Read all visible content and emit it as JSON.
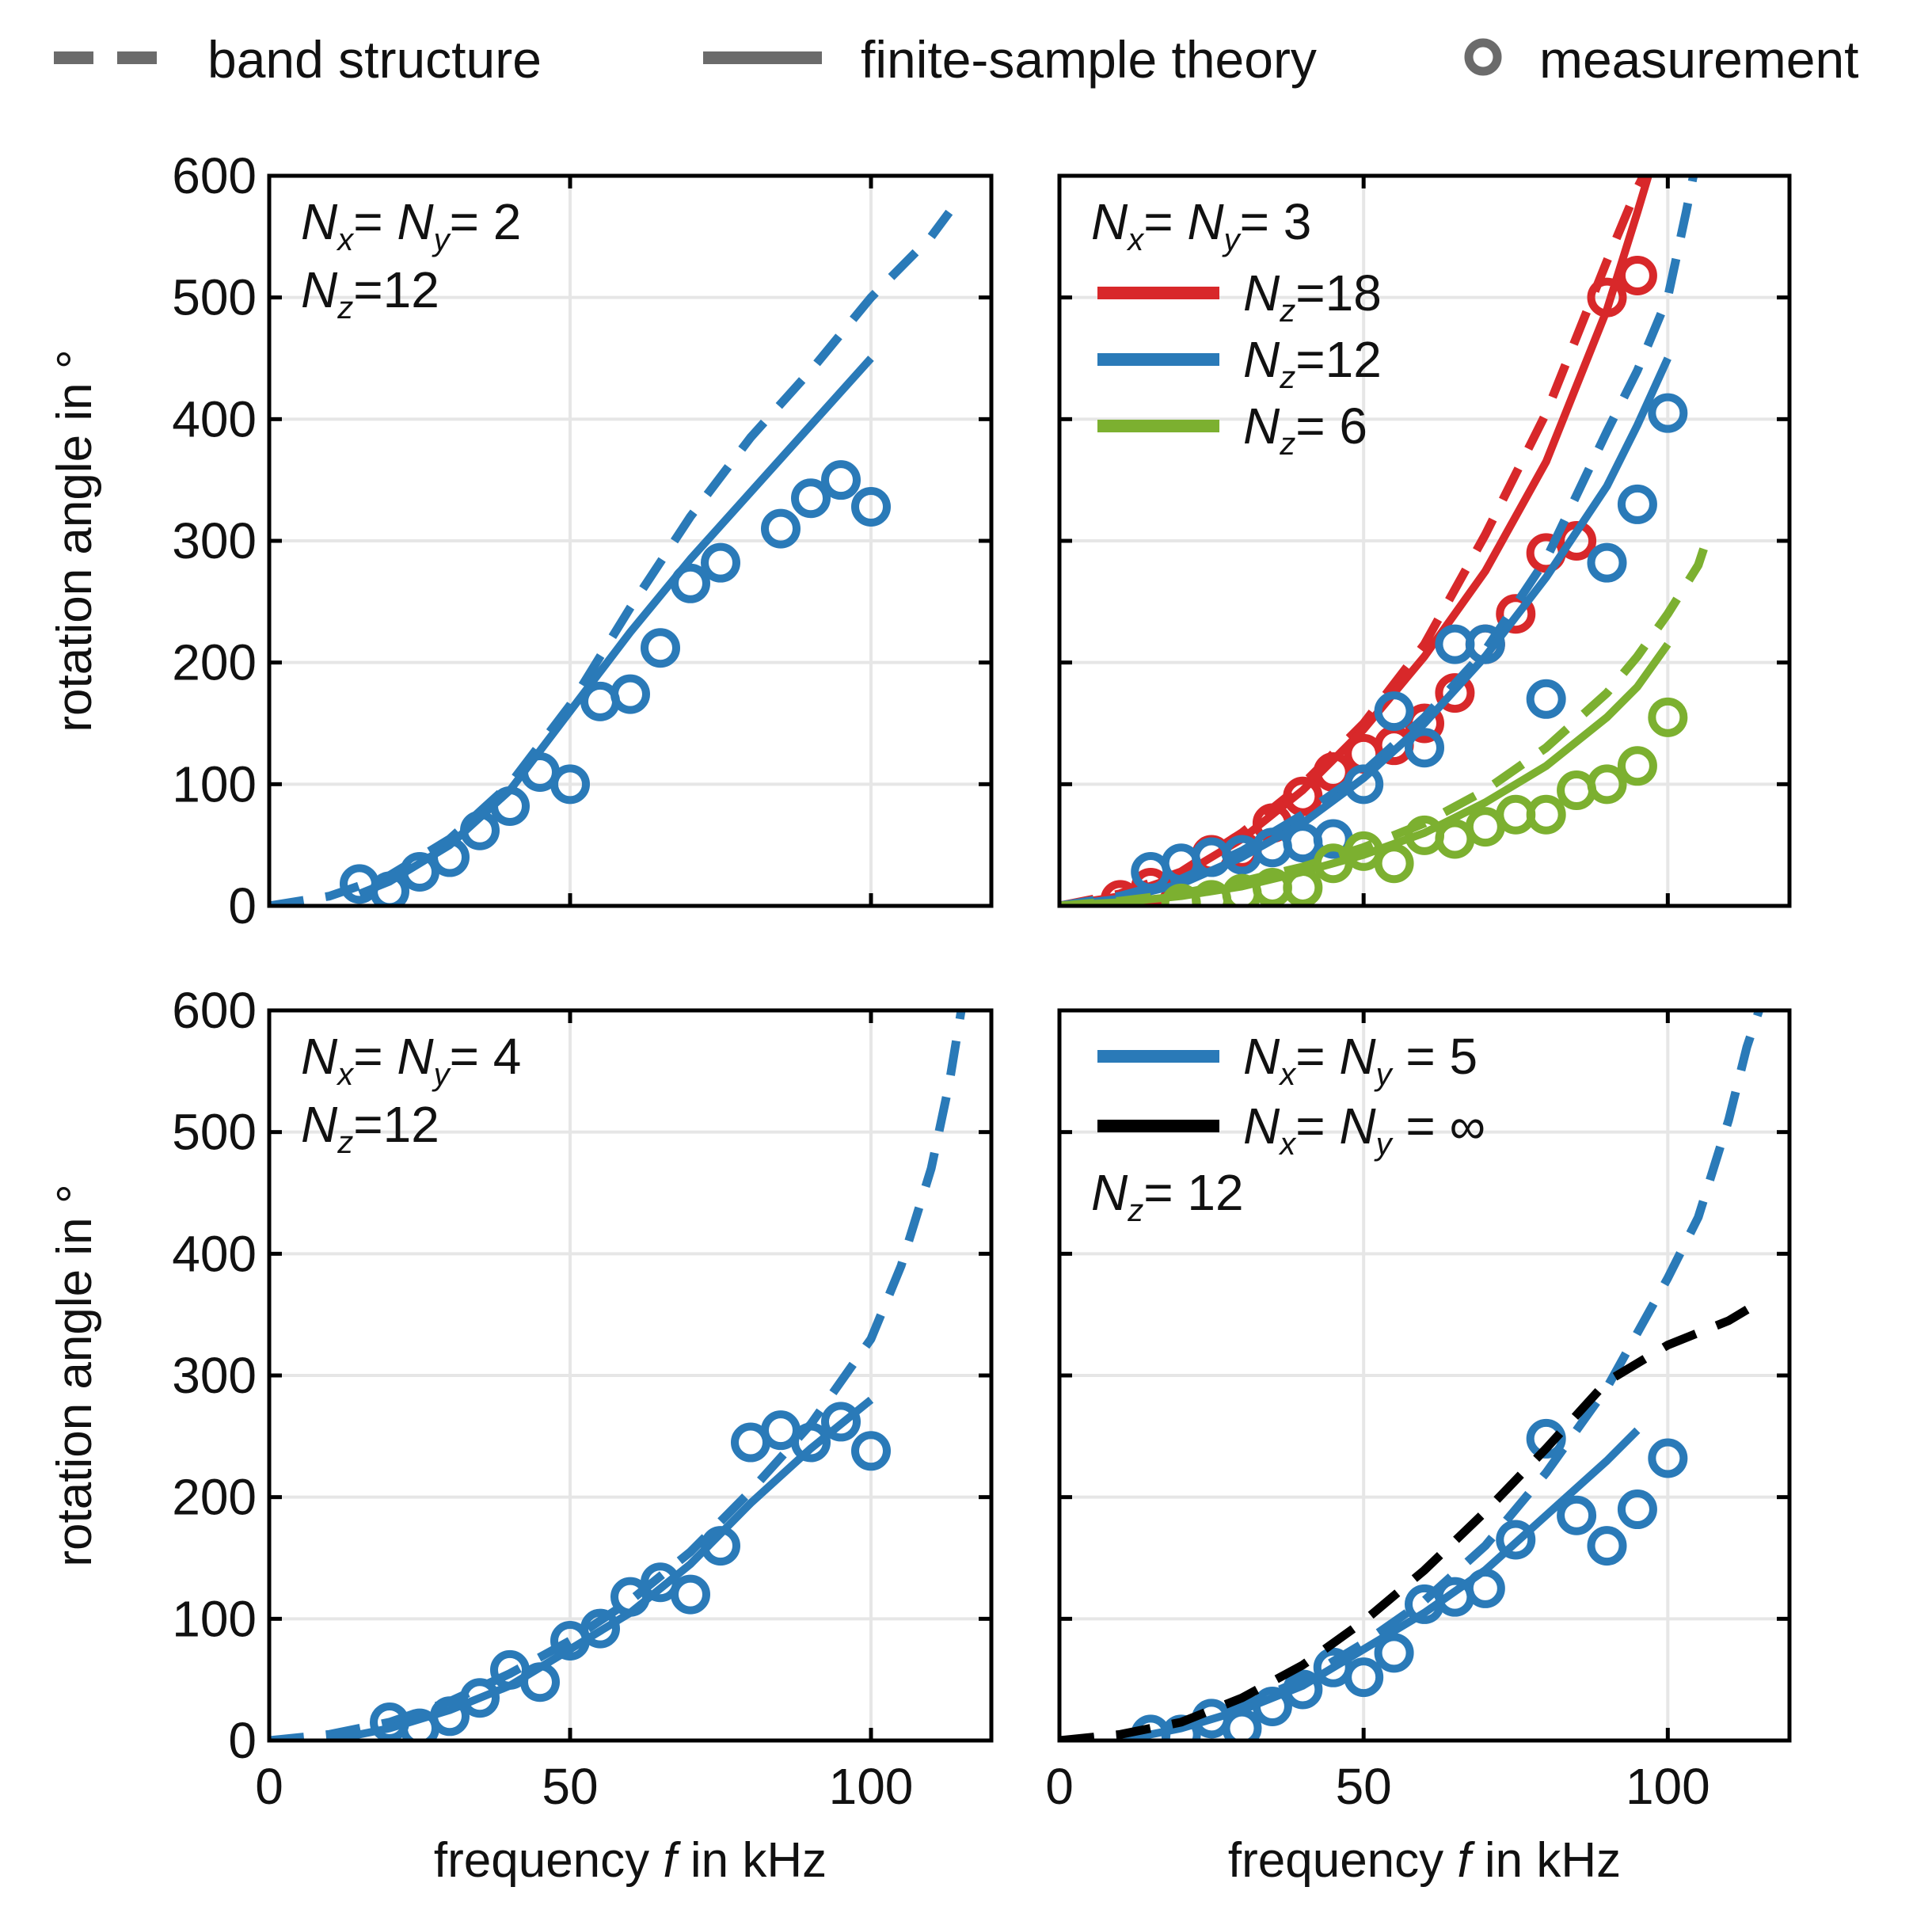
{
  "legend": {
    "dashed_label": "band structure",
    "solid_label": "finite-sample theory",
    "marker_label": "measurement",
    "color": "#6b6b6b"
  },
  "colors": {
    "blue": "#2a7ab8",
    "red": "#d8282a",
    "green": "#7cb030",
    "black": "#000000",
    "grid": "#e6e6e6"
  },
  "chart_data": [
    {
      "type": "line",
      "panel": "top-left",
      "xlim": [
        0,
        120
      ],
      "ylim": [
        0,
        600
      ],
      "xticks": [
        "0",
        "50",
        "100"
      ],
      "yticks": [
        "0",
        "100",
        "200",
        "300",
        "400",
        "500",
        "600"
      ],
      "xlabel": {
        "pre": "frequency ",
        "var": "f",
        "post": " in kHz"
      },
      "ylabel": "rotation angle in °",
      "grid": true,
      "show_x_labels": false,
      "show_y_labels": true,
      "annotations": [
        {
          "lines": [
            [
              [
                "N",
                "x",
                "="
              ],
              [
                " N",
                "y",
                "= 2"
              ]
            ],
            [
              [
                "N",
                "z",
                "=12"
              ]
            ]
          ]
        }
      ],
      "series": [
        {
          "color": "blue",
          "style": "dashed",
          "x": [
            0,
            10,
            20,
            30,
            40,
            50,
            60,
            70,
            80,
            90,
            100,
            110,
            113
          ],
          "y": [
            0,
            8,
            25,
            55,
            100,
            165,
            245,
            320,
            385,
            440,
            500,
            550,
            570
          ]
        },
        {
          "color": "blue",
          "style": "solid",
          "x": [
            15,
            20,
            30,
            40,
            50,
            60,
            70,
            80,
            90,
            100
          ],
          "y": [
            10,
            20,
            50,
            95,
            160,
            225,
            285,
            340,
            395,
            450
          ]
        },
        {
          "color": "blue",
          "style": "markers",
          "x": [
            15,
            20,
            25,
            30,
            35,
            40,
            45,
            50,
            55,
            60,
            65,
            70,
            75,
            85,
            90,
            95,
            100
          ],
          "y": [
            18,
            12,
            28,
            40,
            62,
            82,
            110,
            100,
            168,
            174,
            212,
            265,
            282,
            310,
            335,
            350,
            328
          ]
        }
      ]
    },
    {
      "type": "line",
      "panel": "top-right",
      "xlim": [
        0,
        120
      ],
      "ylim": [
        0,
        600
      ],
      "xticks": [
        "0",
        "50",
        "100"
      ],
      "yticks": [
        "0",
        "100",
        "200",
        "300",
        "400",
        "500",
        "600"
      ],
      "xlabel": {
        "pre": "frequency ",
        "var": "f",
        "post": " in kHz"
      },
      "ylabel": "rotation angle in °",
      "grid": true,
      "show_x_labels": false,
      "show_y_labels": false,
      "annotations": [
        {
          "lines": [
            [
              [
                "N",
                "x",
                "="
              ],
              [
                " N",
                "y",
                "= 3"
              ]
            ]
          ]
        }
      ],
      "legend_entries": [
        {
          "color": "red",
          "parts": [
            [
              "N",
              "z",
              "=18"
            ]
          ]
        },
        {
          "color": "blue",
          "parts": [
            [
              "N",
              "z",
              "=12"
            ]
          ]
        },
        {
          "color": "green",
          "parts": [
            [
              "N",
              "z",
              "= 6"
            ]
          ]
        }
      ],
      "series": [
        {
          "name": "Nz=18",
          "color": "red",
          "style": "dashed",
          "x": [
            0,
            10,
            20,
            30,
            40,
            50,
            60,
            70,
            80,
            90,
            95,
            98
          ],
          "y": [
            0,
            10,
            28,
            60,
            100,
            150,
            215,
            305,
            405,
            530,
            590,
            620
          ]
        },
        {
          "name": "Nz=18",
          "color": "red",
          "style": "solid",
          "x": [
            0,
            10,
            20,
            30,
            40,
            50,
            60,
            70,
            80,
            90,
            95,
            98
          ],
          "y": [
            0,
            8,
            25,
            55,
            95,
            145,
            205,
            275,
            365,
            490,
            570,
            620
          ]
        },
        {
          "name": "Nz=18",
          "color": "red",
          "style": "markers",
          "x": [
            10,
            15,
            25,
            30,
            35,
            40,
            45,
            50,
            55,
            60,
            65,
            70,
            75,
            80,
            85,
            90,
            95
          ],
          "y": [
            5,
            15,
            42,
            45,
            68,
            90,
            110,
            125,
            132,
            150,
            175,
            215,
            240,
            290,
            300,
            500,
            518
          ]
        },
        {
          "name": "Nz=12",
          "color": "blue",
          "style": "dashed",
          "x": [
            0,
            10,
            20,
            30,
            40,
            50,
            60,
            70,
            80,
            90,
            95,
            100,
            103,
            105
          ],
          "y": [
            0,
            8,
            22,
            45,
            75,
            110,
            155,
            210,
            285,
            390,
            440,
            500,
            570,
            620
          ]
        },
        {
          "name": "Nz=12",
          "color": "blue",
          "style": "solid",
          "x": [
            0,
            10,
            20,
            30,
            40,
            50,
            60,
            70,
            80,
            90,
            95,
            100
          ],
          "y": [
            0,
            6,
            18,
            40,
            68,
            105,
            150,
            205,
            270,
            345,
            395,
            450
          ]
        },
        {
          "name": "Nz=12",
          "color": "blue",
          "style": "markers",
          "x": [
            15,
            20,
            25,
            30,
            35,
            40,
            45,
            50,
            55,
            60,
            65,
            70,
            80,
            90,
            95,
            100
          ],
          "y": [
            28,
            35,
            40,
            42,
            48,
            52,
            55,
            100,
            160,
            130,
            215,
            215,
            170,
            282,
            330,
            405
          ]
        },
        {
          "name": "Nz=6",
          "color": "green",
          "style": "dashed",
          "x": [
            0,
            10,
            20,
            30,
            40,
            50,
            60,
            70,
            80,
            90,
            95,
            100,
            105,
            107
          ],
          "y": [
            0,
            4,
            10,
            20,
            32,
            48,
            68,
            95,
            130,
            175,
            205,
            240,
            280,
            310
          ]
        },
        {
          "name": "Nz=6",
          "color": "green",
          "style": "solid",
          "x": [
            0,
            10,
            20,
            30,
            40,
            50,
            60,
            70,
            80,
            90,
            95,
            100
          ],
          "y": [
            0,
            3,
            8,
            16,
            28,
            42,
            60,
            85,
            115,
            155,
            180,
            215
          ]
        },
        {
          "name": "Nz=6",
          "color": "green",
          "style": "markers",
          "x": [
            20,
            25,
            30,
            35,
            40,
            45,
            50,
            55,
            60,
            65,
            70,
            75,
            80,
            85,
            90,
            95,
            100
          ],
          "y": [
            2,
            5,
            10,
            15,
            15,
            35,
            45,
            35,
            58,
            55,
            65,
            75,
            75,
            95,
            100,
            115,
            155
          ]
        }
      ]
    },
    {
      "type": "line",
      "panel": "bottom-left",
      "xlim": [
        0,
        120
      ],
      "ylim": [
        0,
        600
      ],
      "xticks": [
        "0",
        "50",
        "100"
      ],
      "yticks": [
        "0",
        "100",
        "200",
        "300",
        "400",
        "500",
        "600"
      ],
      "xlabel": {
        "pre": "frequency ",
        "var": "f",
        "post": " in kHz"
      },
      "ylabel": "rotation angle in °",
      "grid": true,
      "show_x_labels": true,
      "show_y_labels": true,
      "annotations": [
        {
          "lines": [
            [
              [
                "N",
                "x",
                "="
              ],
              [
                " N",
                "y",
                "= 4"
              ]
            ],
            [
              [
                "N",
                "z",
                "=12"
              ]
            ]
          ]
        }
      ],
      "series": [
        {
          "color": "blue",
          "style": "dashed",
          "x": [
            0,
            10,
            20,
            30,
            40,
            50,
            60,
            70,
            80,
            90,
            100,
            105,
            110,
            113,
            115
          ],
          "y": [
            0,
            5,
            15,
            32,
            55,
            82,
            115,
            155,
            205,
            260,
            330,
            390,
            470,
            540,
            600
          ]
        },
        {
          "color": "blue",
          "style": "solid",
          "x": [
            10,
            20,
            30,
            40,
            50,
            60,
            70,
            80,
            90,
            100
          ],
          "y": [
            0,
            10,
            25,
            45,
            75,
            105,
            145,
            195,
            240,
            280
          ]
        },
        {
          "color": "blue",
          "style": "markers",
          "x": [
            20,
            25,
            30,
            35,
            40,
            45,
            50,
            55,
            60,
            65,
            70,
            75,
            80,
            85,
            90,
            95,
            100
          ],
          "y": [
            15,
            10,
            20,
            35,
            58,
            48,
            82,
            92,
            118,
            130,
            120,
            160,
            245,
            255,
            245,
            262,
            238
          ]
        }
      ]
    },
    {
      "type": "line",
      "panel": "bottom-right",
      "xlim": [
        0,
        120
      ],
      "ylim": [
        0,
        600
      ],
      "xticks": [
        "0",
        "50",
        "100"
      ],
      "yticks": [
        "0",
        "100",
        "200",
        "300",
        "400",
        "500",
        "600"
      ],
      "xlabel": {
        "pre": "frequency ",
        "var": "f",
        "post": " in kHz"
      },
      "ylabel": "rotation angle in °",
      "grid": true,
      "show_x_labels": true,
      "show_y_labels": false,
      "annotations": [
        {
          "lines": [
            [],
            [],
            [
              [
                "N",
                "z",
                "= 12"
              ]
            ]
          ]
        }
      ],
      "legend_entries": [
        {
          "color": "blue",
          "parts": [
            [
              "N",
              "x",
              "="
            ],
            [
              " N",
              "y",
              " = 5"
            ]
          ]
        },
        {
          "color": "black",
          "parts": [
            [
              "N",
              "x",
              "="
            ],
            [
              " N",
              "y",
              " = ∞"
            ]
          ]
        }
      ],
      "series": [
        {
          "name": "Nx = Ny = 5",
          "color": "blue",
          "style": "dashed",
          "x": [
            0,
            10,
            20,
            30,
            40,
            50,
            60,
            70,
            80,
            90,
            100,
            105,
            110,
            113,
            115
          ],
          "y": [
            0,
            3,
            12,
            28,
            50,
            80,
            115,
            160,
            220,
            290,
            380,
            430,
            510,
            570,
            600
          ]
        },
        {
          "name": "Nx = Ny = 5",
          "color": "blue",
          "style": "solid",
          "x": [
            10,
            20,
            30,
            40,
            50,
            60,
            70,
            80,
            90,
            95
          ],
          "y": [
            0,
            10,
            25,
            45,
            75,
            105,
            140,
            185,
            230,
            255
          ]
        },
        {
          "name": "Nx = Ny = 5",
          "color": "blue",
          "style": "markers",
          "x": [
            15,
            20,
            25,
            30,
            35,
            40,
            45,
            50,
            55,
            60,
            65,
            70,
            75,
            80,
            85,
            90,
            95,
            100
          ],
          "y": [
            5,
            5,
            18,
            10,
            28,
            42,
            60,
            52,
            72,
            112,
            118,
            125,
            165,
            248,
            185,
            160,
            190,
            232
          ]
        },
        {
          "name": "Nx = Ny = ∞",
          "color": "black",
          "style": "dashed",
          "x": [
            0,
            10,
            20,
            30,
            40,
            50,
            60,
            70,
            80,
            90,
            100,
            110,
            115
          ],
          "y": [
            0,
            5,
            15,
            35,
            62,
            98,
            140,
            188,
            240,
            295,
            325,
            345,
            360
          ]
        }
      ]
    }
  ]
}
